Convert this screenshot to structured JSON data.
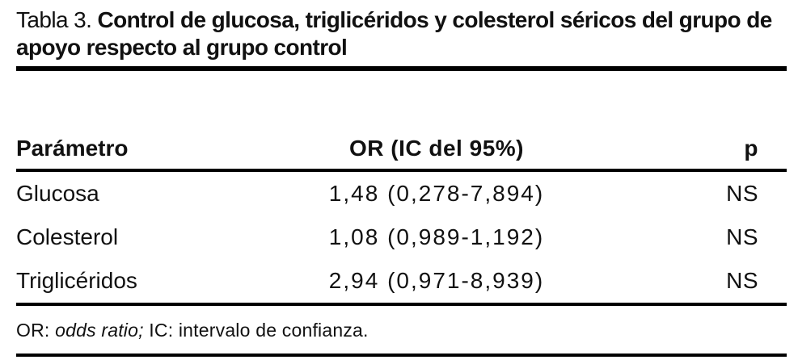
{
  "caption": {
    "label": "Tabla 3.",
    "title": "Control de glucosa, triglicéridos y colesterol séricos del grupo de apoyo respecto al grupo control"
  },
  "table": {
    "columns": [
      "Parámetro",
      "OR (IC del 95%)",
      "p"
    ],
    "rows": [
      [
        "Glucosa",
        "1,48 (0,278-7,894)",
        "NS"
      ],
      [
        "Colesterol",
        "1,08 (0,989-1,192)",
        "NS"
      ],
      [
        "Triglicéridos",
        "2,94 (0,971-8,939)",
        "NS"
      ]
    ]
  },
  "footnote": {
    "prefix": "OR: ",
    "abbreviation_italic": "odds ratio;",
    "suffix": " IC: intervalo de confianza."
  },
  "colors": {
    "text": "#111111",
    "rule": "#000000",
    "background": "#ffffff"
  }
}
